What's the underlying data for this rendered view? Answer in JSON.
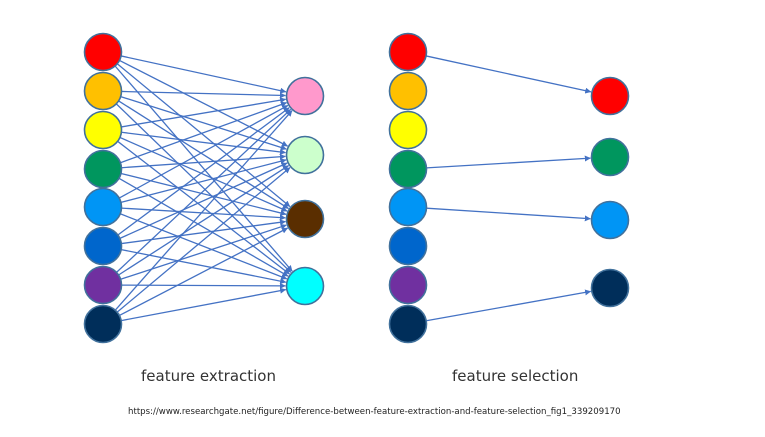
{
  "captions": {
    "extraction": "feature extraction",
    "selection": "feature selection"
  },
  "source_url": "https://www.researchgate.net/figure/Difference-between-feature-extraction-and-feature-selection_fig1_339209170",
  "colors": {
    "edge": "#4472c4",
    "node_stroke": "#41719c"
  },
  "extraction": {
    "inputs": [
      {
        "name": "red",
        "color": "#ff0000"
      },
      {
        "name": "orange",
        "color": "#ffc000"
      },
      {
        "name": "yellow",
        "color": "#ffff00"
      },
      {
        "name": "green",
        "color": "#00965e"
      },
      {
        "name": "light-blue",
        "color": "#0095f5"
      },
      {
        "name": "blue",
        "color": "#0066cc"
      },
      {
        "name": "purple",
        "color": "#7030a0"
      },
      {
        "name": "navy",
        "color": "#002e5a"
      }
    ],
    "outputs": [
      {
        "name": "pink",
        "color": "#ff99cc"
      },
      {
        "name": "mint",
        "color": "#ccffcc"
      },
      {
        "name": "brown",
        "color": "#5a2e00"
      },
      {
        "name": "cyan",
        "color": "#00ffff"
      }
    ],
    "connectivity": "all-to-all"
  },
  "selection": {
    "inputs": [
      {
        "name": "red",
        "color": "#ff0000"
      },
      {
        "name": "orange",
        "color": "#ffc000"
      },
      {
        "name": "yellow",
        "color": "#ffff00"
      },
      {
        "name": "green",
        "color": "#00965e"
      },
      {
        "name": "light-blue",
        "color": "#0095f5"
      },
      {
        "name": "blue",
        "color": "#0066cc"
      },
      {
        "name": "purple",
        "color": "#7030a0"
      },
      {
        "name": "navy",
        "color": "#002e5a"
      }
    ],
    "outputs": [
      {
        "name": "red",
        "color": "#ff0000"
      },
      {
        "name": "green",
        "color": "#00965e"
      },
      {
        "name": "light-blue",
        "color": "#0095f5"
      },
      {
        "name": "navy",
        "color": "#002e5a"
      }
    ],
    "edges": [
      {
        "from": 0,
        "to": 0
      },
      {
        "from": 3,
        "to": 1
      },
      {
        "from": 4,
        "to": 2
      },
      {
        "from": 7,
        "to": 3
      }
    ]
  }
}
